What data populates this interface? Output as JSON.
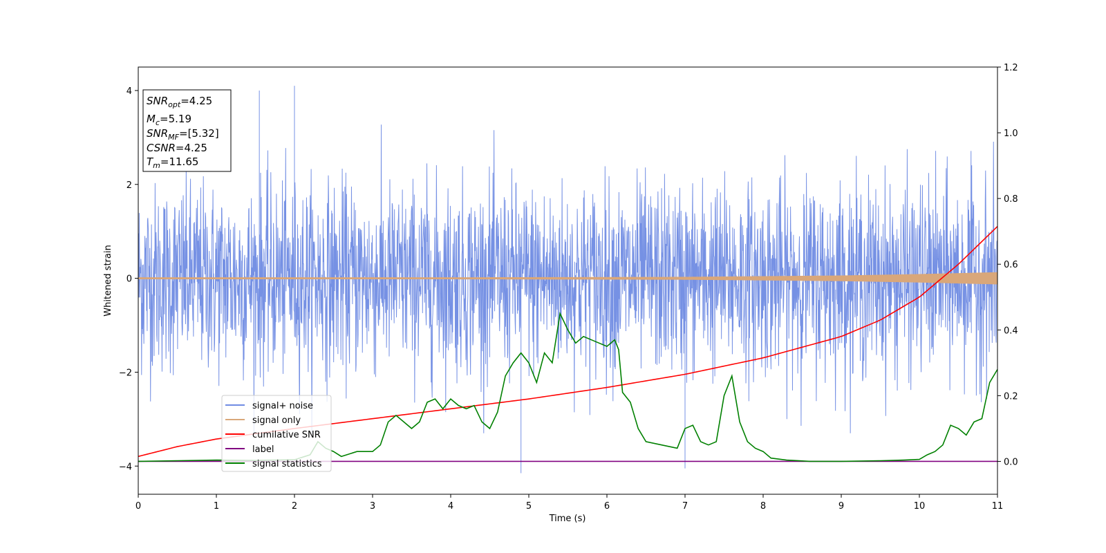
{
  "chart_data": {
    "type": "line",
    "xlabel": "Time (s)",
    "ylabel": "Whitened strain",
    "xlim": [
      0,
      11
    ],
    "ylim_left": [
      -4.6,
      4.5
    ],
    "ylim_right": [
      -0.1,
      1.2
    ],
    "x_ticks": [
      "0",
      "1",
      "2",
      "3",
      "4",
      "5",
      "6",
      "7",
      "8",
      "9",
      "10",
      "11"
    ],
    "y_left_ticks": [
      "−4",
      "−2",
      "0",
      "2",
      "4"
    ],
    "y_right_ticks": [
      "0.0",
      "0.2",
      "0.4",
      "0.6",
      "0.8",
      "1.0",
      "1.2"
    ],
    "grid": false,
    "legend_position": "lower-left",
    "info_box": {
      "snr_opt": "4.25",
      "mc": "5.19",
      "snr_mf": "[5.32]",
      "csnr": "4.25",
      "tm": "11.65"
    },
    "series": [
      {
        "name": "signal+ noise",
        "axis": "left",
        "color": "#6f8be3",
        "description_values": "noisy whitened strain roughly spanning -3 to 3 with spikes to about 4",
        "peak_spikes": [
          [
            1.55,
            4.0
          ],
          [
            2.0,
            4.1
          ],
          [
            4.9,
            -4.15
          ],
          [
            7.0,
            -4.05
          ]
        ]
      },
      {
        "name": "signal only",
        "axis": "left",
        "color": "#d9a77a",
        "amplitude_envelope": [
          [
            0,
            0.02
          ],
          [
            4,
            0.02
          ],
          [
            7,
            0.03
          ],
          [
            9,
            0.06
          ],
          [
            10,
            0.09
          ],
          [
            11,
            0.13
          ]
        ]
      },
      {
        "name": "cumilative SNR",
        "axis": "right",
        "color": "#ff0000",
        "x": [
          0,
          0.5,
          1,
          2,
          3,
          4,
          5,
          6,
          7,
          8,
          9,
          9.5,
          10,
          10.5,
          11
        ],
        "y": [
          0.015,
          0.045,
          0.068,
          0.1,
          0.13,
          0.16,
          0.19,
          0.225,
          0.265,
          0.315,
          0.38,
          0.43,
          0.5,
          0.6,
          0.715
        ]
      },
      {
        "name": "label",
        "axis": "right",
        "color": "#800080",
        "x": [
          0,
          11
        ],
        "y": [
          0,
          0
        ]
      },
      {
        "name": "signal statistics",
        "axis": "right",
        "color": "#008000",
        "x": [
          0,
          0.5,
          1,
          1.5,
          2,
          2.2,
          2.3,
          2.4,
          2.5,
          2.6,
          2.8,
          3.0,
          3.1,
          3.2,
          3.3,
          3.4,
          3.5,
          3.6,
          3.7,
          3.8,
          3.9,
          4.0,
          4.1,
          4.2,
          4.3,
          4.4,
          4.5,
          4.6,
          4.7,
          4.8,
          4.9,
          5.0,
          5.1,
          5.2,
          5.3,
          5.4,
          5.5,
          5.6,
          5.7,
          5.8,
          5.9,
          6.0,
          6.1,
          6.15,
          6.2,
          6.3,
          6.4,
          6.5,
          6.7,
          6.9,
          7.0,
          7.1,
          7.2,
          7.3,
          7.4,
          7.5,
          7.6,
          7.7,
          7.8,
          7.9,
          8.0,
          8.1,
          8.3,
          8.6,
          9.0,
          9.5,
          9.8,
          10.0,
          10.1,
          10.2,
          10.3,
          10.4,
          10.5,
          10.6,
          10.7,
          10.8,
          10.9,
          11.0
        ],
        "y": [
          0.0,
          0.002,
          0.004,
          0.003,
          0.005,
          0.02,
          0.06,
          0.04,
          0.03,
          0.015,
          0.03,
          0.03,
          0.05,
          0.12,
          0.14,
          0.12,
          0.1,
          0.12,
          0.18,
          0.19,
          0.16,
          0.19,
          0.17,
          0.16,
          0.17,
          0.12,
          0.1,
          0.15,
          0.26,
          0.3,
          0.33,
          0.3,
          0.24,
          0.33,
          0.3,
          0.45,
          0.4,
          0.36,
          0.38,
          0.37,
          0.36,
          0.35,
          0.37,
          0.34,
          0.21,
          0.18,
          0.1,
          0.06,
          0.05,
          0.04,
          0.1,
          0.11,
          0.06,
          0.05,
          0.06,
          0.2,
          0.26,
          0.12,
          0.06,
          0.04,
          0.03,
          0.01,
          0.004,
          0.0,
          0.0,
          0.002,
          0.004,
          0.006,
          0.02,
          0.03,
          0.05,
          0.11,
          0.1,
          0.08,
          0.12,
          0.13,
          0.24,
          0.28
        ]
      }
    ]
  }
}
